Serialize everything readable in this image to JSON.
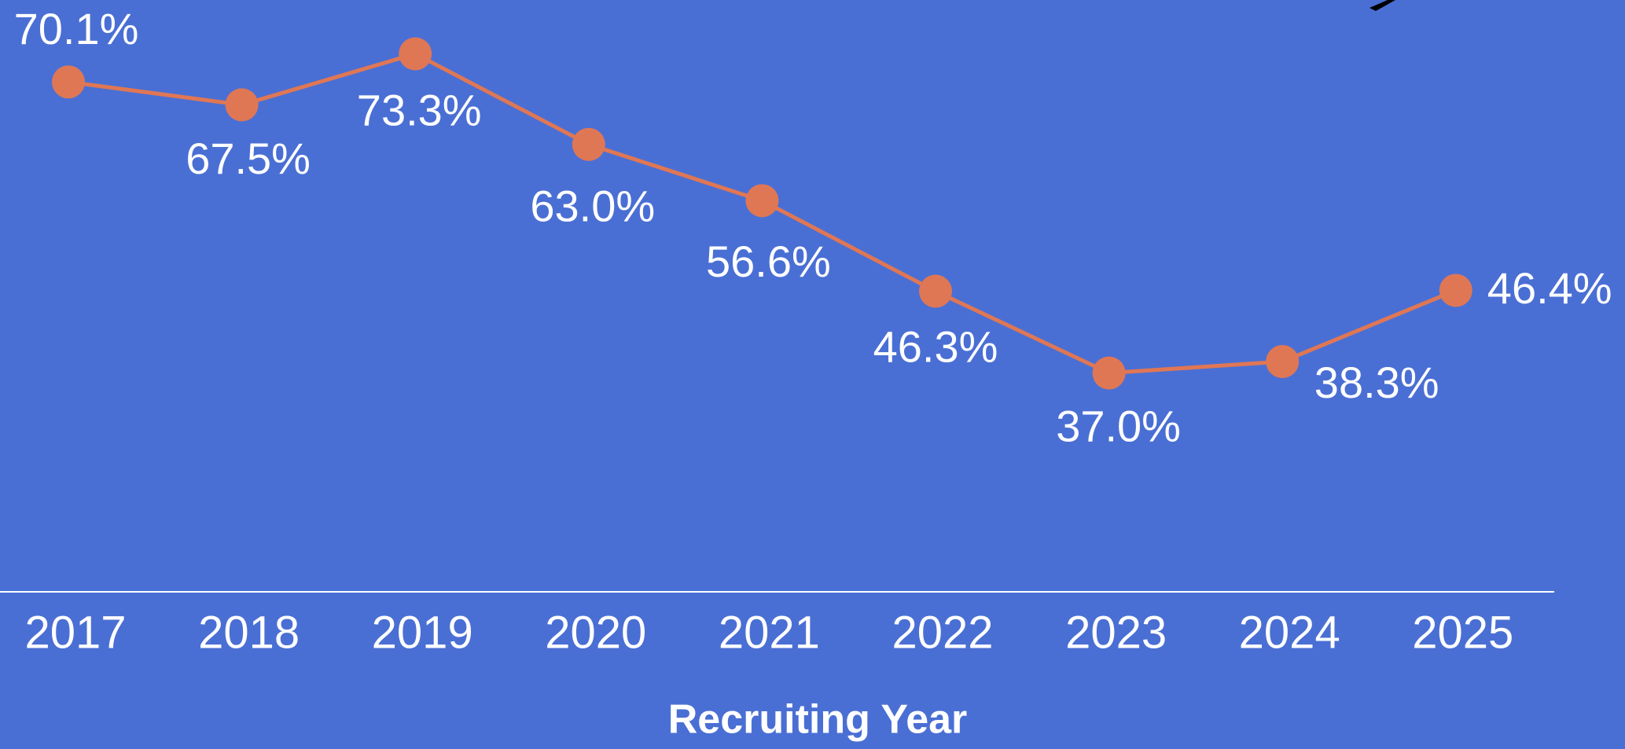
{
  "chart_data": {
    "type": "line",
    "x_label": "Recruiting Year",
    "categories": [
      "2017",
      "2018",
      "2019",
      "2020",
      "2021",
      "2022",
      "2023",
      "2024",
      "2025"
    ],
    "series": [
      {
        "color": "#e07754",
        "values": [
          70.1,
          67.5,
          73.3,
          63.0,
          56.6,
          46.3,
          37.0,
          38.3,
          46.4
        ],
        "value_labels": [
          "70.1%",
          "67.5%",
          "73.3%",
          "63.0%",
          "56.6%",
          "46.3%",
          "37.0%",
          "38.3%",
          "46.4%"
        ]
      }
    ]
  }
}
